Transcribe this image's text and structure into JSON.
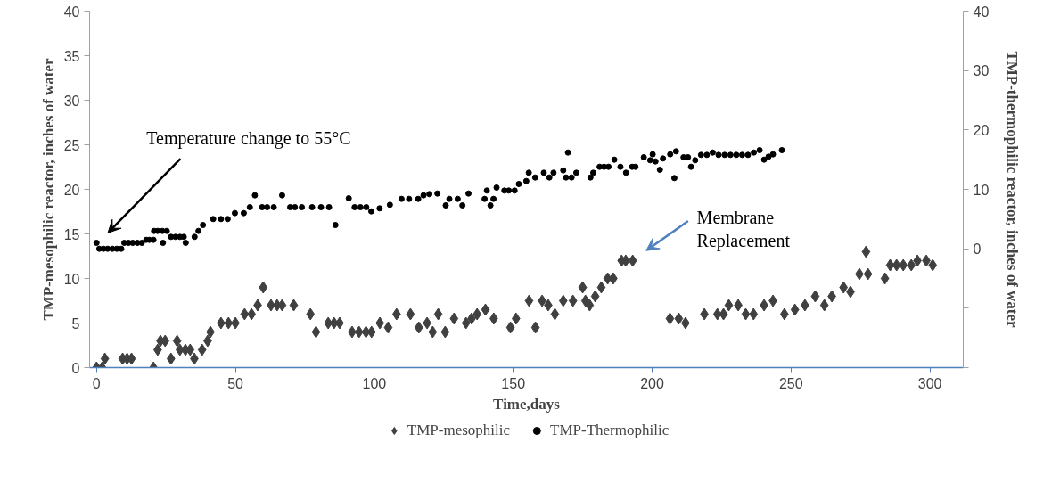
{
  "chart_data": {
    "type": "scatter",
    "xlabel": "Time,days",
    "ylabel": "TMP-mesophilic reactor, inches of water",
    "y2label": "TMP-thermophilic reactor, inches of water",
    "xlim": [
      -2.5,
      312
    ],
    "xticks": [
      0,
      50,
      100,
      150,
      200,
      250,
      300
    ],
    "ylim": [
      0,
      40
    ],
    "yticks": [
      0,
      5,
      10,
      15,
      20,
      25,
      30,
      35,
      40
    ],
    "y2lim": [
      -20,
      40
    ],
    "y2ticks": [
      {
        "value": -20,
        "label": null
      },
      {
        "value": -10,
        "label": null
      },
      0,
      10,
      20,
      30,
      40
    ],
    "grid": false,
    "legend": "bottom",
    "annotations": [
      "Temperature change to 55°C",
      "Membrane\nReplacement"
    ],
    "series": [
      {
        "name": "TMP-mesophilic",
        "color": "#404040",
        "marker": "diamond",
        "x": [
          0,
          2,
          3,
          9.4,
          11,
          12.6,
          20.5,
          22,
          23,
          24.7,
          26.8,
          29,
          30,
          32,
          33.7,
          35.2,
          38,
          40,
          41,
          44.8,
          47.5,
          50,
          53.3,
          55.8,
          58,
          60,
          62.8,
          65,
          66.8,
          71,
          77,
          79,
          83.4,
          85.5,
          87.5,
          92,
          94.5,
          97,
          99,
          102,
          105,
          108,
          113,
          116,
          119,
          121,
          123,
          125.5,
          128.7,
          133,
          135,
          137,
          140,
          143,
          149,
          151,
          155.7,
          158,
          160.4,
          162.6,
          165,
          168,
          171.5,
          175,
          176,
          177.5,
          179.5,
          181.7,
          184,
          186,
          189,
          190.5,
          193,
          206.4,
          209.6,
          212,
          218.8,
          223.5,
          225.7,
          227.6,
          231,
          233.7,
          236.5,
          240.3,
          243.5,
          247.6,
          251.4,
          255,
          258.7,
          262,
          264.7,
          268.9,
          271.4,
          274.6,
          277,
          277.7,
          283.8,
          285.7,
          288,
          290.4,
          293.3,
          295.5,
          298.7,
          301
        ],
        "values": [
          0,
          0,
          1,
          1,
          1,
          1,
          0,
          2,
          3,
          3,
          1,
          3,
          2,
          2,
          2,
          1,
          2,
          3,
          4,
          5,
          5,
          5,
          6,
          6,
          7,
          9,
          7,
          7,
          7,
          7,
          6,
          4,
          5,
          5,
          5,
          4,
          4,
          4,
          4,
          5,
          4.5,
          6,
          6,
          4.5,
          5,
          4,
          6,
          4,
          5.5,
          5,
          5.5,
          6,
          6.5,
          5.5,
          4.5,
          5.5,
          7.5,
          4.5,
          7.5,
          7,
          6,
          7.5,
          7.5,
          9,
          7.5,
          7,
          8,
          9,
          10,
          10,
          12,
          12,
          12,
          5.5,
          5.5,
          5,
          6,
          6,
          6,
          7,
          7,
          6,
          6,
          7,
          7.5,
          6,
          6.5,
          7,
          8,
          7,
          8,
          9,
          8.5,
          10.5,
          13,
          10.5,
          10,
          11.5,
          11.5,
          11.5,
          11.5,
          12,
          12,
          11.5
        ]
      },
      {
        "name": "TMP-Thermophilic",
        "color": "#000000",
        "marker": "circle",
        "axis": "y2",
        "x": [
          0,
          1,
          2.5,
          4,
          5.7,
          7.3,
          8.9,
          10,
          11.5,
          13,
          14.7,
          16.3,
          17.9,
          19,
          20.5,
          20.7,
          22,
          23.7,
          23.9,
          25.3,
          26.8,
          28.4,
          30,
          31.4,
          32.1,
          35.3,
          36.7,
          38.3,
          42,
          44.8,
          47.2,
          49.8,
          53,
          55.2,
          57,
          59.6,
          61.4,
          63.8,
          66.8,
          69.7,
          71.4,
          73.9,
          77.6,
          80.8,
          83.7,
          86,
          90.8,
          92.9,
          95,
          97.1,
          98.9,
          101.9,
          105.6,
          109.8,
          112.5,
          115.8,
          117.7,
          119.8,
          122.7,
          125.7,
          127,
          130,
          131.7,
          133.9,
          139.7,
          140.5,
          141.8,
          142.9,
          144,
          146.8,
          148.4,
          150.5,
          152,
          154.7,
          155.6,
          157.9,
          161,
          163,
          164.5,
          168,
          169,
          169.7,
          171,
          172.7,
          177.8,
          178.8,
          181.1,
          182.7,
          184.3,
          186.4,
          188.6,
          190.6,
          192.8,
          194,
          197,
          199.3,
          200.2,
          201.2,
          202.8,
          203.9,
          206.5,
          208,
          208.6,
          211.3,
          212.9,
          214,
          215.5,
          217.6,
          219.7,
          221.8,
          223.9,
          226.1,
          228.2,
          230.3,
          232.4,
          234.5,
          236.6,
          238.7,
          240.3,
          241.9,
          243.5,
          246.7
        ],
        "values": [
          1,
          0,
          0,
          0,
          0,
          0,
          0,
          1,
          1,
          1,
          1,
          1,
          1.5,
          1.5,
          1.5,
          3,
          3,
          3,
          1,
          3,
          2,
          2,
          2,
          2,
          1,
          2,
          3,
          4,
          5,
          5,
          5,
          6,
          6,
          7,
          9,
          7,
          7,
          7,
          9,
          7,
          7,
          7,
          7,
          7,
          7,
          4,
          8.5,
          7,
          7,
          7,
          6.3,
          6.8,
          7.4,
          8.4,
          8.4,
          8.4,
          9,
          9.2,
          9.3,
          7.3,
          8.4,
          8.4,
          7.3,
          9.3,
          8.4,
          9.8,
          7.3,
          8.4,
          10.3,
          9.8,
          9.8,
          9.8,
          10.9,
          11.4,
          12.8,
          12,
          12.8,
          12,
          12.8,
          13.2,
          12,
          16.2,
          12,
          12.8,
          12,
          12.8,
          13.8,
          13.8,
          13.8,
          15,
          13.8,
          12.8,
          13.8,
          13.8,
          15.4,
          14.9,
          15.9,
          14.7,
          13.3,
          15.2,
          15.9,
          11.9,
          16.4,
          15.4,
          15.4,
          13.8,
          14.9,
          15.8,
          15.8,
          16.2,
          15.8,
          15.8,
          15.8,
          15.8,
          15.8,
          15.8,
          16.2,
          16.6,
          15,
          15.5,
          15.9,
          16.6
        ]
      }
    ]
  }
}
